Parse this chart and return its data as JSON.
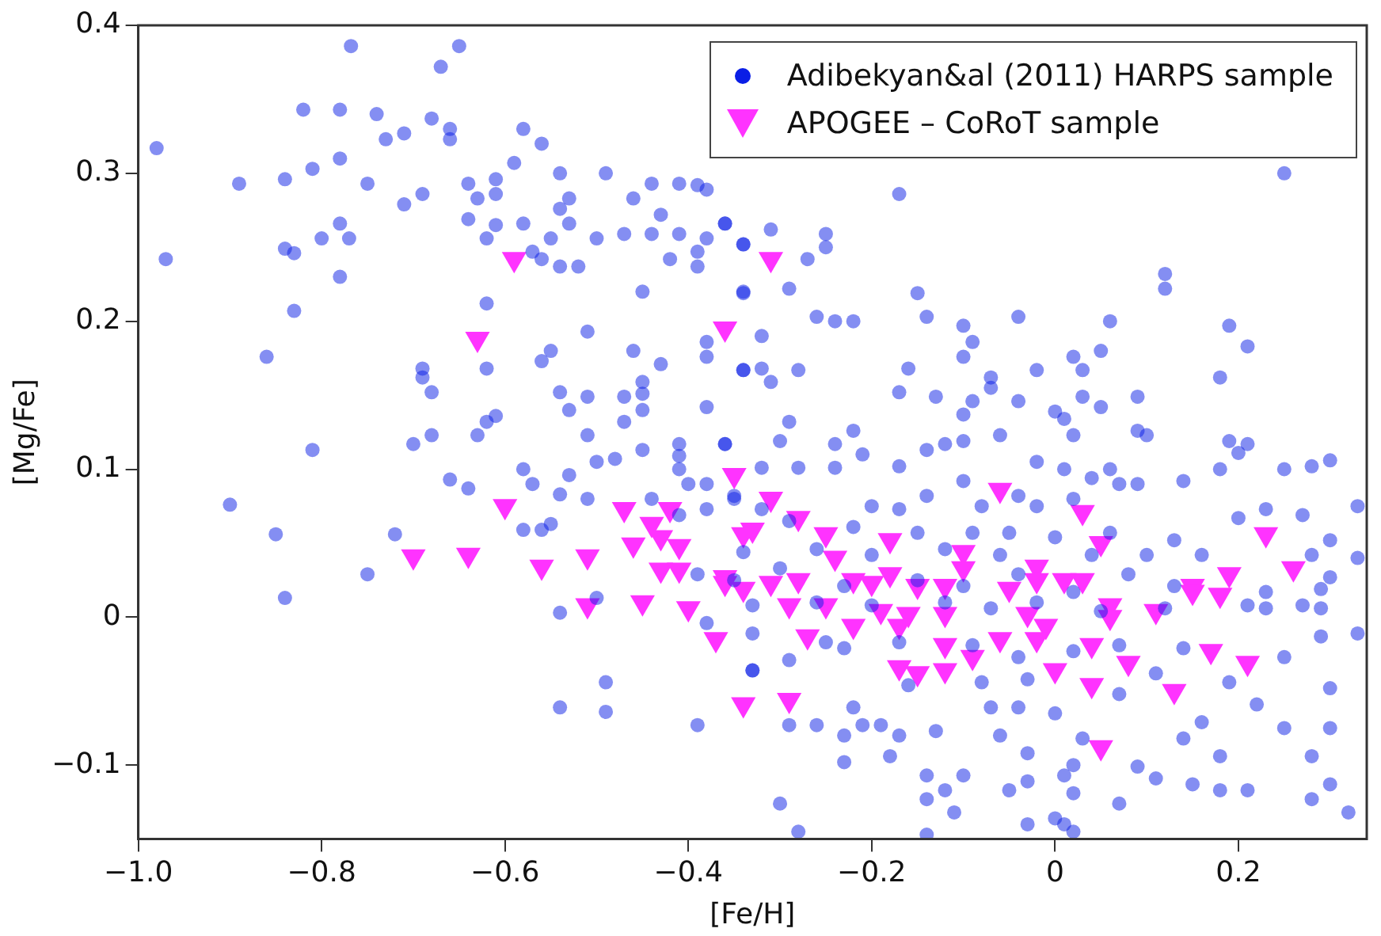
{
  "chart_data": {
    "type": "scatter",
    "xlabel": "[Fe/H]",
    "ylabel": "[Mg/Fe]",
    "xlim": [
      -1.0,
      0.34
    ],
    "ylim": [
      -0.15,
      0.4
    ],
    "xticks": [
      {
        "value": -1.0,
        "label": "−1.0"
      },
      {
        "value": -0.8,
        "label": "−0.8"
      },
      {
        "value": -0.6,
        "label": "−0.6"
      },
      {
        "value": -0.4,
        "label": "−0.4"
      },
      {
        "value": -0.2,
        "label": "−0.2"
      },
      0,
      0.2
    ],
    "yticks": [
      {
        "value": -0.1,
        "label": "−0.1"
      },
      0,
      0.1,
      0.2,
      0.3,
      0.4
    ],
    "grid": false,
    "legend": "top right",
    "series": [
      {
        "name": "Adibekyan&al (2011) HARPS sample",
        "color": "#0a1ee6",
        "marker": "circle",
        "x": [
          -0.768,
          -0.65,
          -0.67,
          -0.98,
          -0.97,
          -0.82,
          -0.78,
          -0.74,
          -0.73,
          -0.71,
          -0.68,
          -0.66,
          -0.66,
          -0.58,
          -0.59,
          -0.89,
          -0.84,
          -0.81,
          -0.78,
          -0.75,
          -0.71,
          -0.69,
          -0.64,
          -0.61,
          -0.63,
          -0.61,
          -0.64,
          -0.61,
          -0.58,
          -0.62,
          -0.84,
          -0.83,
          -0.8,
          -0.78,
          -0.77,
          -0.78,
          -0.83,
          -0.86,
          -0.81,
          -0.9,
          -0.85,
          -0.84,
          -0.75,
          -0.72,
          -0.7,
          -0.68,
          -0.69,
          -0.69,
          -0.68,
          -0.62,
          -0.62,
          -0.61,
          -0.62,
          -0.63,
          -0.66,
          -0.64,
          -0.58,
          -0.57,
          -0.58,
          -0.56,
          -0.54,
          -0.53,
          -0.51,
          -0.51,
          -0.51,
          -0.55,
          -0.56,
          -0.54,
          -0.53,
          -0.51,
          -0.5,
          -0.48,
          -0.47,
          -0.47,
          -0.46,
          -0.45,
          -0.45,
          -0.43,
          -0.45,
          -0.45,
          -0.41,
          -0.41,
          -0.38,
          -0.36,
          -0.38,
          -0.38,
          -0.34,
          -0.45,
          -0.34,
          -0.56,
          -0.54,
          -0.53,
          -0.54,
          -0.53,
          -0.55,
          -0.57,
          -0.56,
          -0.54,
          -0.52,
          -0.5,
          -0.49,
          -0.46,
          -0.47,
          -0.44,
          -0.43,
          -0.44,
          -0.41,
          -0.39,
          -0.38,
          -0.41,
          -0.38,
          -0.36,
          -0.42,
          -0.39,
          -0.39,
          -0.34,
          -0.49,
          -0.49,
          -0.54,
          -0.39,
          -0.54,
          -0.5,
          -0.38,
          -0.33,
          -0.39,
          -0.41,
          -0.4,
          -0.38,
          -0.38,
          -0.35,
          -0.44,
          -0.41,
          -0.55,
          0.25,
          -0.17,
          -0.36,
          -0.31,
          -0.25,
          -0.25,
          -0.27,
          -0.34,
          -0.29,
          -0.34,
          -0.15,
          0.12,
          0.12,
          -0.26,
          -0.24,
          -0.22,
          -0.14,
          -0.1,
          -0.04,
          0.06,
          0.19,
          0.21,
          -0.32,
          -0.09,
          0.02,
          0.05,
          0.03,
          -0.02,
          -0.1,
          -0.16,
          -0.34,
          -0.32,
          -0.28,
          -0.31,
          -0.07,
          -0.07,
          -0.17,
          -0.13,
          -0.09,
          -0.04,
          0.03,
          0.09,
          0.18,
          0.0,
          0.01,
          0.05,
          -0.29,
          -0.22,
          -0.1,
          -0.06,
          -0.12,
          -0.1,
          -0.14,
          -0.24,
          -0.21,
          -0.3,
          -0.36,
          -0.17,
          -0.02,
          0.01,
          0.04,
          0.02,
          0.1,
          0.09,
          0.14,
          0.19,
          0.21,
          0.2,
          0.25,
          0.28,
          0.3,
          0.33,
          0.27,
          0.23,
          0.18,
          0.07,
          0.06,
          0.09,
          -0.32,
          -0.28,
          -0.24,
          -0.2,
          -0.17,
          -0.14,
          -0.1,
          -0.08,
          -0.04,
          -0.02,
          0.02,
          -0.32,
          -0.35,
          -0.29,
          -0.22,
          -0.15,
          -0.09,
          -0.05,
          0.0,
          0.06,
          0.13,
          0.2,
          0.3,
          0.28,
          -0.34,
          -0.26,
          -0.2,
          -0.12,
          -0.06,
          0.04,
          0.1,
          0.16,
          0.33,
          -0.35,
          -0.3,
          -0.23,
          -0.15,
          -0.1,
          -0.04,
          0.02,
          0.08,
          0.13,
          0.23,
          0.29,
          0.3,
          -0.33,
          -0.26,
          -0.2,
          -0.12,
          -0.07,
          -0.02,
          0.05,
          0.12,
          0.21,
          0.27,
          0.29,
          0.33,
          0.29,
          0.23,
          -0.33,
          -0.25,
          -0.23,
          -0.17,
          -0.09,
          -0.04,
          0.02,
          0.07,
          0.14,
          0.25,
          -0.33,
          -0.29,
          -0.16,
          -0.08,
          -0.03,
          0.07,
          0.11,
          0.19,
          0.3,
          -0.22,
          -0.21,
          -0.29,
          -0.26,
          -0.23,
          -0.19,
          -0.17,
          -0.13,
          -0.07,
          -0.04,
          -0.06,
          0.0,
          0.03,
          0.02,
          -0.03,
          0.09,
          0.14,
          0.18,
          0.16,
          0.22,
          0.25,
          0.28,
          0.3,
          -0.23,
          -0.18,
          -0.14,
          -0.1,
          -0.12,
          -0.14,
          -0.11,
          -0.05,
          -0.03,
          0.01,
          0.02,
          0.0,
          0.01,
          0.02,
          -0.03,
          0.07,
          0.11,
          0.15,
          0.18,
          0.21,
          0.28,
          0.32,
          0.3,
          -0.3,
          -0.28,
          -0.14
        ],
        "values": [
          0.386,
          0.386,
          0.372,
          0.317,
          0.242,
          0.343,
          0.343,
          0.34,
          0.323,
          0.327,
          0.337,
          0.33,
          0.323,
          0.33,
          0.307,
          0.293,
          0.296,
          0.303,
          0.31,
          0.293,
          0.279,
          0.286,
          0.293,
          0.296,
          0.283,
          0.286,
          0.269,
          0.265,
          0.266,
          0.256,
          0.249,
          0.246,
          0.256,
          0.266,
          0.256,
          0.23,
          0.207,
          0.176,
          0.113,
          0.076,
          0.056,
          0.013,
          0.029,
          0.056,
          0.117,
          0.123,
          0.168,
          0.162,
          0.152,
          0.212,
          0.168,
          0.136,
          0.132,
          0.123,
          0.093,
          0.087,
          0.1,
          0.09,
          0.059,
          0.059,
          0.083,
          0.096,
          0.08,
          0.123,
          0.193,
          0.18,
          0.173,
          0.152,
          0.14,
          0.149,
          0.105,
          0.107,
          0.149,
          0.132,
          0.18,
          0.159,
          0.151,
          0.171,
          0.14,
          0.113,
          0.117,
          0.109,
          0.142,
          0.117,
          0.176,
          0.186,
          0.167,
          0.22,
          0.22,
          0.32,
          0.3,
          0.283,
          0.276,
          0.266,
          0.256,
          0.247,
          0.242,
          0.237,
          0.237,
          0.256,
          0.3,
          0.283,
          0.259,
          0.293,
          0.272,
          0.259,
          0.293,
          0.292,
          0.289,
          0.259,
          0.256,
          0.266,
          0.242,
          0.247,
          0.237,
          0.252,
          -0.044,
          -0.064,
          -0.061,
          -0.073,
          0.003,
          0.013,
          -0.004,
          -0.036,
          0.029,
          0.1,
          0.09,
          0.09,
          0.073,
          0.082,
          0.08,
          0.069,
          0.063,
          0.3,
          0.286,
          0.266,
          0.262,
          0.259,
          0.25,
          0.242,
          0.252,
          0.222,
          0.219,
          0.219,
          0.232,
          0.222,
          0.203,
          0.2,
          0.2,
          0.203,
          0.197,
          0.203,
          0.2,
          0.197,
          0.183,
          0.19,
          0.186,
          0.176,
          0.18,
          0.167,
          0.167,
          0.176,
          0.168,
          0.167,
          0.168,
          0.167,
          0.159,
          0.162,
          0.155,
          0.152,
          0.149,
          0.146,
          0.146,
          0.149,
          0.149,
          0.162,
          0.139,
          0.134,
          0.142,
          0.132,
          0.126,
          0.137,
          0.123,
          0.117,
          0.119,
          0.113,
          0.117,
          0.11,
          0.119,
          0.117,
          0.102,
          0.105,
          0.1,
          0.094,
          0.123,
          0.123,
          0.126,
          0.092,
          0.119,
          0.117,
          0.111,
          0.1,
          0.102,
          0.106,
          0.075,
          0.069,
          0.073,
          0.1,
          0.09,
          0.1,
          0.09,
          0.101,
          0.101,
          0.101,
          0.075,
          0.073,
          0.082,
          0.092,
          0.075,
          0.082,
          0.075,
          0.08,
          0.073,
          0.08,
          0.065,
          0.061,
          0.057,
          0.057,
          0.057,
          0.054,
          0.057,
          0.052,
          0.067,
          0.052,
          0.042,
          0.044,
          0.046,
          0.042,
          0.046,
          0.042,
          0.042,
          0.042,
          0.042,
          0.04,
          0.025,
          0.033,
          0.021,
          0.025,
          0.021,
          0.029,
          0.017,
          0.029,
          0.021,
          0.017,
          0.019,
          0.027,
          0.008,
          0.01,
          0.008,
          0.01,
          0.006,
          0.01,
          0.004,
          0.006,
          0.008,
          0.008,
          0.006,
          -0.011,
          -0.013,
          0.006,
          -0.011,
          -0.017,
          -0.021,
          -0.017,
          -0.019,
          -0.027,
          -0.023,
          -0.019,
          -0.021,
          -0.027,
          -0.036,
          -0.029,
          -0.046,
          -0.044,
          -0.042,
          -0.052,
          -0.038,
          -0.044,
          -0.048,
          -0.061,
          -0.073,
          -0.073,
          -0.073,
          -0.08,
          -0.073,
          -0.08,
          -0.077,
          -0.061,
          -0.061,
          -0.08,
          -0.065,
          -0.082,
          -0.1,
          -0.092,
          -0.101,
          -0.082,
          -0.094,
          -0.071,
          -0.059,
          -0.075,
          -0.094,
          -0.075,
          -0.098,
          -0.094,
          -0.107,
          -0.107,
          -0.117,
          -0.123,
          -0.132,
          -0.117,
          -0.111,
          -0.107,
          -0.119,
          -0.136,
          -0.14,
          -0.145,
          -0.14,
          -0.126,
          -0.109,
          -0.113,
          -0.117,
          -0.117,
          -0.123,
          -0.132,
          -0.113,
          -0.126,
          -0.145,
          -0.147
        ]
      },
      {
        "name": "APOGEE – CoRoT sample",
        "color": "#ff33ff",
        "marker": "triangle",
        "x": [
          -0.59,
          -0.63,
          -0.6,
          -0.7,
          -0.64,
          -0.56,
          -0.51,
          -0.51,
          -0.47,
          -0.46,
          -0.45,
          -0.44,
          -0.42,
          -0.43,
          -0.43,
          -0.41,
          -0.41,
          -0.4,
          -0.37,
          -0.36,
          -0.35,
          -0.36,
          -0.36,
          -0.34,
          -0.33,
          -0.31,
          -0.31,
          -0.28,
          -0.34,
          -0.25,
          -0.24,
          -0.18,
          -0.06,
          0.03,
          0.05,
          -0.1,
          -0.34,
          -0.31,
          -0.28,
          -0.29,
          -0.25,
          -0.22,
          -0.2,
          -0.18,
          -0.15,
          -0.19,
          -0.16,
          -0.17,
          -0.12,
          -0.1,
          -0.12,
          -0.05,
          -0.02,
          -0.02,
          0.01,
          0.03,
          -0.03,
          -0.01,
          -0.06,
          -0.02,
          0.06,
          0.06,
          0.11,
          0.15,
          0.15,
          0.18,
          0.19,
          0.23,
          0.26,
          -0.27,
          -0.22,
          -0.12,
          -0.09,
          -0.17,
          -0.15,
          -0.12,
          0.0,
          0.04,
          0.04,
          0.08,
          0.13,
          0.17,
          0.21,
          0.05,
          -0.29
        ],
        "values": [
          0.242,
          0.188,
          0.075,
          0.041,
          0.042,
          0.034,
          0.041,
          0.008,
          0.073,
          0.049,
          0.01,
          0.063,
          0.073,
          0.054,
          0.032,
          0.032,
          0.048,
          0.006,
          -0.015,
          0.195,
          0.096,
          0.027,
          0.023,
          -0.059,
          0.059,
          0.242,
          0.08,
          0.067,
          0.056,
          0.056,
          0.04,
          0.052,
          0.086,
          0.071,
          0.05,
          0.044,
          0.019,
          0.023,
          0.025,
          0.008,
          0.008,
          0.025,
          0.023,
          0.029,
          0.021,
          0.004,
          0.002,
          -0.006,
          0.021,
          0.033,
          0.002,
          0.019,
          0.034,
          0.025,
          0.025,
          0.025,
          0.002,
          -0.006,
          -0.015,
          -0.015,
          0.008,
          0.0,
          0.004,
          0.021,
          0.017,
          0.015,
          0.029,
          0.056,
          0.033,
          -0.013,
          -0.006,
          -0.019,
          -0.027,
          -0.034,
          -0.038,
          -0.036,
          -0.036,
          -0.019,
          -0.046,
          -0.031,
          -0.05,
          -0.023,
          -0.031,
          -0.088,
          -0.056
        ]
      }
    ]
  }
}
